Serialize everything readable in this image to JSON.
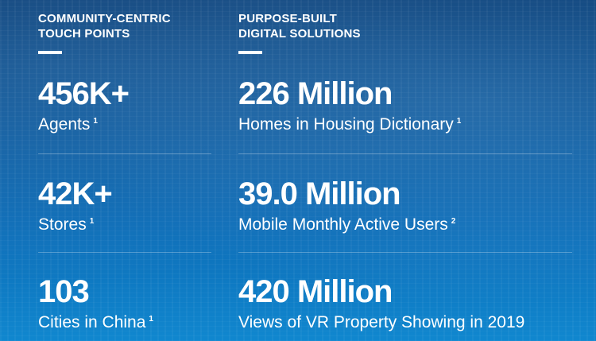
{
  "left_column": {
    "heading_line1": "COMMUNITY-CENTRIC",
    "heading_line2": "TOUCH POINTS",
    "stats": [
      {
        "value": "456K+",
        "label": "Agents",
        "footnote": "1"
      },
      {
        "value": "42K+",
        "label": "Stores",
        "footnote": "1"
      },
      {
        "value": "103",
        "label": "Cities in China",
        "footnote": "1"
      }
    ]
  },
  "right_column": {
    "heading_line1": "PURPOSE-BUILT",
    "heading_line2": "DIGITAL SOLUTIONS",
    "stats": [
      {
        "value": "226 Million",
        "label": "Homes in Housing Dictionary",
        "footnote": "1"
      },
      {
        "value": "39.0 Million",
        "label": "Mobile Monthly Active Users",
        "footnote": "2"
      },
      {
        "value": "420 Million",
        "label": "Views of VR Property Showing in 2019",
        "footnote": ""
      }
    ]
  },
  "colors": {
    "background_top": "#0a3f77",
    "background_bottom": "#1087cf",
    "text": "#ffffff"
  }
}
